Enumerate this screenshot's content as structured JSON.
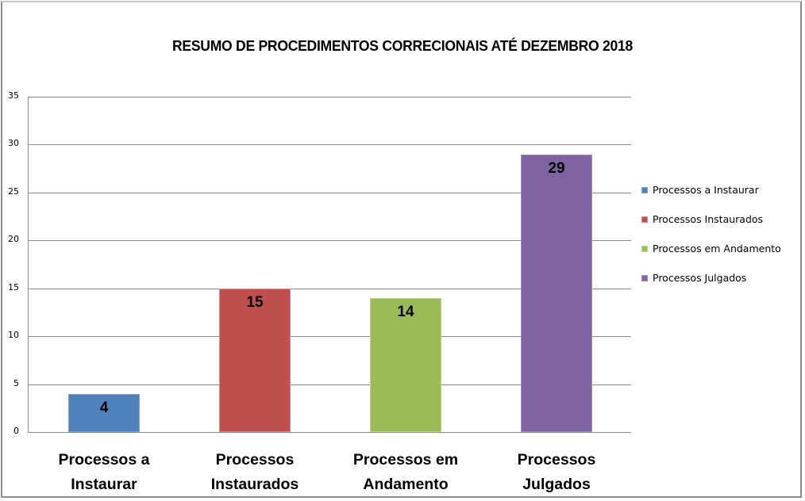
{
  "chart_data": {
    "type": "bar",
    "title": "RESUMO DE PROCEDIMENTOS CORRECIONAIS ATÉ DEZEMBRO 2018",
    "categories": [
      "Processos a Instaurar",
      "Processos Instaurados",
      "Processos em Andamento",
      "Processos Julgados"
    ],
    "category_lines": [
      [
        "Processos a",
        "Instaurar"
      ],
      [
        "Processos",
        "Instaurados"
      ],
      [
        "Processos em",
        "Andamento"
      ],
      [
        "Processos",
        "Julgados"
      ]
    ],
    "values": [
      4,
      15,
      14,
      29
    ],
    "value_labels": [
      "4",
      "15",
      "14",
      "29"
    ],
    "colors": [
      "#4f81bd",
      "#c0504d",
      "#9bbb59",
      "#8064a2"
    ],
    "border_colors": [
      "#7aa3d6",
      "#e08a88",
      "#bcd68a",
      "#a68cc4"
    ],
    "xlabel": "",
    "ylabel": "",
    "ylim": [
      0,
      35
    ],
    "yticks": [
      "0",
      "5",
      "10",
      "15",
      "20",
      "25",
      "30",
      "35"
    ],
    "grid": true,
    "legend": {
      "position": "right",
      "entries": [
        "Processos a Instaurar",
        "Processos Instaurados",
        "Processos em Andamento",
        "Processos Julgados"
      ]
    }
  }
}
